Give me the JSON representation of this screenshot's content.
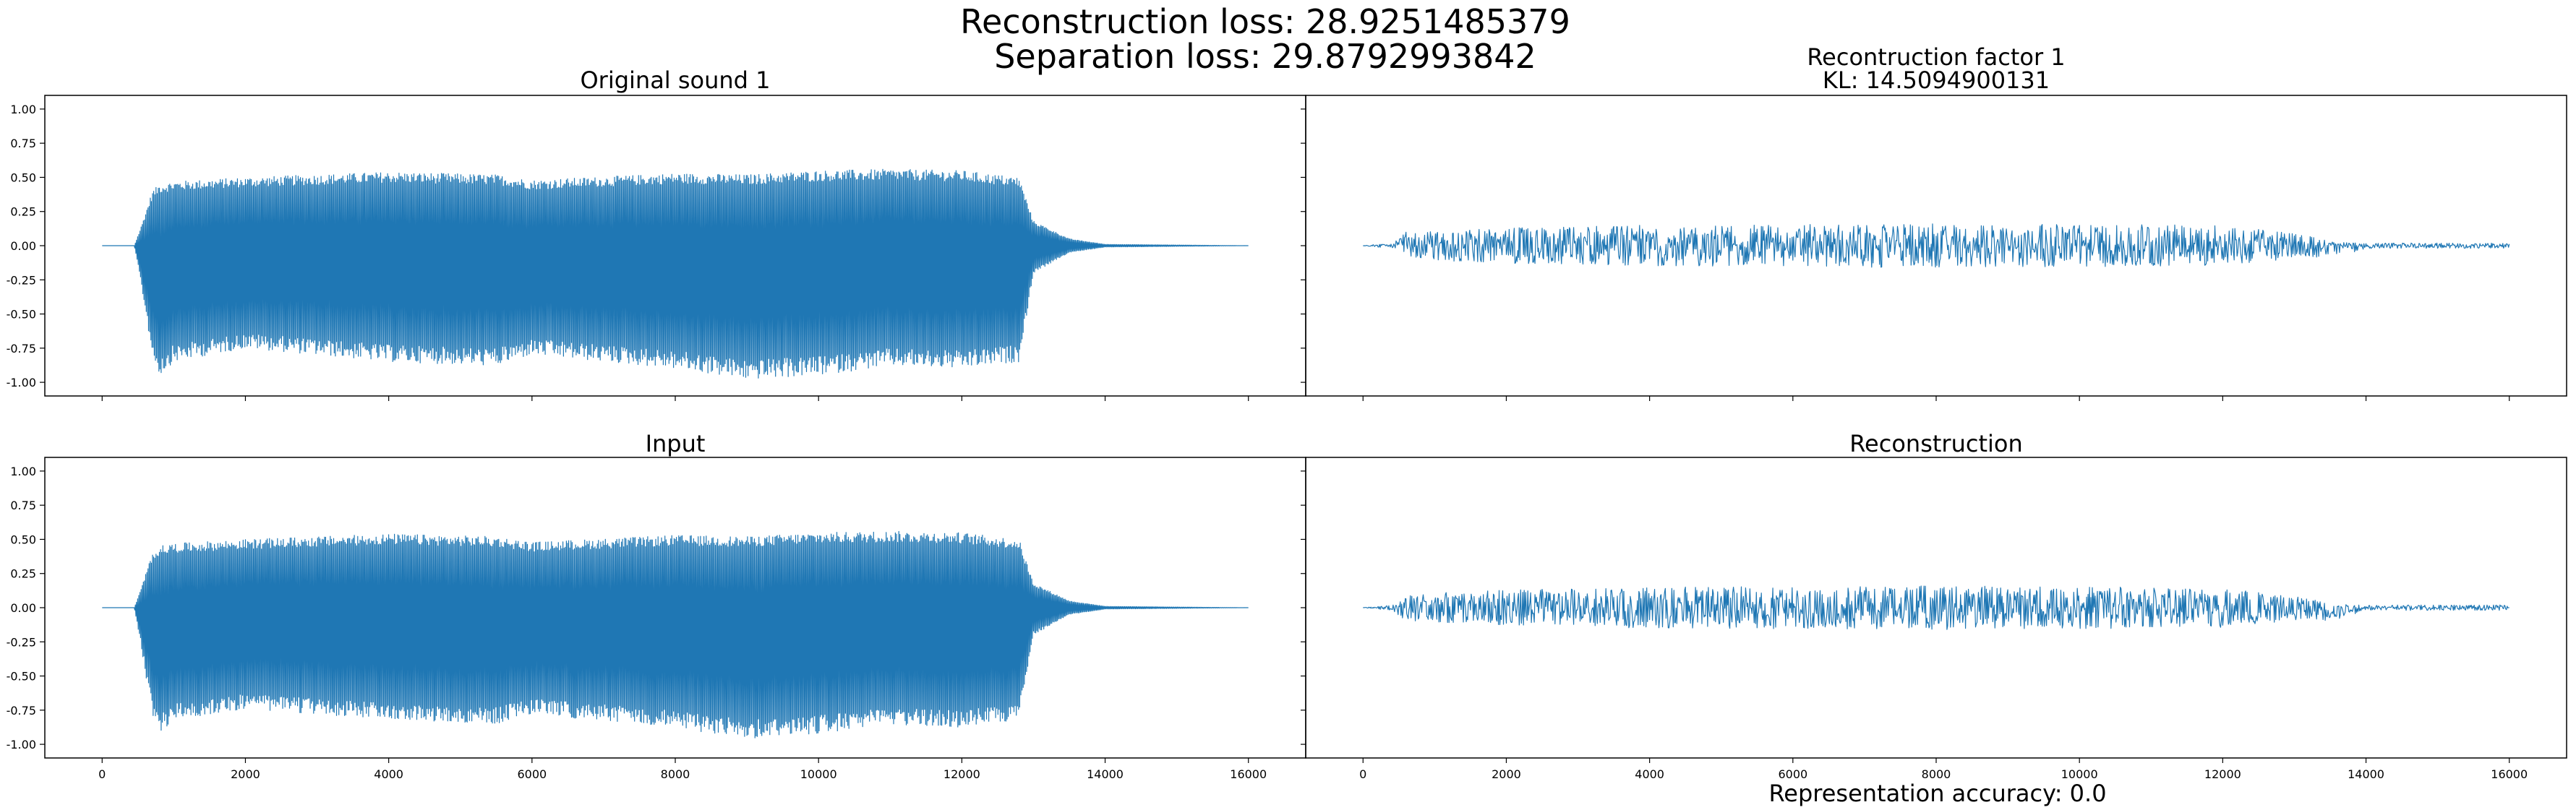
{
  "figure": {
    "suptitle_line1": "Reconstruction loss: 28.9251485379",
    "suptitle_line2": "Separation loss: 29.8792993842",
    "footer": "Representation accuracy: 0.0"
  },
  "colors": {
    "line": "#1f77b4",
    "axes": "#000000"
  },
  "chart_data": [
    {
      "type": "line",
      "title": "Original sound 1",
      "xlabel": "",
      "ylabel": "",
      "xlim": [
        -800,
        16800
      ],
      "ylim": [
        -1.1,
        1.1
      ],
      "yticks": [
        "1.00",
        "0.75",
        "0.50",
        "0.25",
        "0.00",
        "-0.25",
        "-0.50",
        "-0.75",
        "-1.00"
      ],
      "xticks": [],
      "grid": false,
      "series": [
        {
          "signal": "waveform",
          "samples": 16000,
          "envelope": {
            "x": [
              0,
              450,
              550,
              700,
              800,
              1000,
              2000,
              4000,
              5500,
              6000,
              8000,
              9000,
              10000,
              11000,
              12000,
              12800,
              13000,
              13500,
              14000,
              16000
            ],
            "upper": [
              0,
              0,
              0.15,
              0.4,
              0.45,
              0.47,
              0.5,
              0.54,
              0.52,
              0.48,
              0.53,
              0.52,
              0.55,
              0.56,
              0.55,
              0.5,
              0.18,
              0.05,
              0.01,
              0
            ],
            "lower": [
              0,
              0,
              -0.3,
              -0.8,
              -0.95,
              -0.85,
              -0.75,
              -0.85,
              -0.88,
              -0.8,
              -0.9,
              -0.98,
              -0.95,
              -0.88,
              -0.9,
              -0.85,
              -0.2,
              -0.05,
              -0.01,
              0
            ]
          }
        }
      ]
    },
    {
      "type": "line",
      "title": "Recontruction factor 1",
      "subtitle": "KL: 14.5094900131",
      "xlabel": "",
      "ylabel": "",
      "xlim": [
        -800,
        16800
      ],
      "ylim": [
        -1.1,
        1.1
      ],
      "yticks": [],
      "xticks": [],
      "grid": false,
      "series": [
        {
          "signal": "noise",
          "samples": 16000,
          "envelope": {
            "x": [
              0,
              400,
              600,
              2000,
              4000,
              8000,
              12000,
              13200,
              13500,
              14000,
              16000
            ],
            "upper": [
              0,
              0.02,
              0.1,
              0.13,
              0.15,
              0.16,
              0.15,
              0.08,
              0.03,
              0.02,
              0.02
            ],
            "lower": [
              0,
              -0.02,
              -0.1,
              -0.13,
              -0.15,
              -0.16,
              -0.15,
              -0.08,
              -0.1,
              -0.02,
              -0.02
            ]
          }
        }
      ]
    },
    {
      "type": "line",
      "title": "Input",
      "xlabel": "",
      "ylabel": "",
      "xlim": [
        -800,
        16800
      ],
      "ylim": [
        -1.1,
        1.1
      ],
      "yticks": [
        "1.00",
        "0.75",
        "0.50",
        "0.25",
        "0.00",
        "-0.25",
        "-0.50",
        "-0.75",
        "-1.00"
      ],
      "xticks": [
        "0",
        "2000",
        "4000",
        "6000",
        "8000",
        "10000",
        "12000",
        "14000",
        "16000"
      ],
      "grid": false,
      "series": [
        {
          "signal": "waveform",
          "samples": 16000,
          "envelope": {
            "x": [
              0,
              450,
              550,
              700,
              800,
              1000,
              2000,
              4000,
              5500,
              6000,
              8000,
              9000,
              10000,
              11000,
              12000,
              12800,
              13000,
              13500,
              14000,
              16000
            ],
            "upper": [
              0,
              0,
              0.15,
              0.4,
              0.45,
              0.47,
              0.5,
              0.54,
              0.52,
              0.48,
              0.53,
              0.52,
              0.55,
              0.56,
              0.55,
              0.5,
              0.18,
              0.05,
              0.01,
              0
            ],
            "lower": [
              0,
              0,
              -0.3,
              -0.8,
              -0.92,
              -0.82,
              -0.74,
              -0.82,
              -0.85,
              -0.78,
              -0.88,
              -0.96,
              -0.92,
              -0.86,
              -0.88,
              -0.82,
              -0.2,
              -0.05,
              -0.01,
              0
            ]
          }
        }
      ]
    },
    {
      "type": "line",
      "title": "Reconstruction",
      "xlabel": "",
      "ylabel": "",
      "xlim": [
        -800,
        16800
      ],
      "ylim": [
        -1.1,
        1.1
      ],
      "yticks": [],
      "xticks": [
        "0",
        "2000",
        "4000",
        "6000",
        "8000",
        "10000",
        "12000",
        "14000",
        "16000"
      ],
      "grid": false,
      "series": [
        {
          "signal": "noise",
          "samples": 16000,
          "envelope": {
            "x": [
              0,
              400,
              600,
              2000,
              4000,
              8000,
              12000,
              13200,
              13500,
              14000,
              16000
            ],
            "upper": [
              0,
              0.02,
              0.1,
              0.13,
              0.15,
              0.16,
              0.15,
              0.08,
              0.03,
              0.02,
              0.02
            ],
            "lower": [
              0,
              -0.02,
              -0.1,
              -0.13,
              -0.15,
              -0.16,
              -0.15,
              -0.08,
              -0.1,
              -0.02,
              -0.02
            ]
          }
        }
      ]
    }
  ]
}
